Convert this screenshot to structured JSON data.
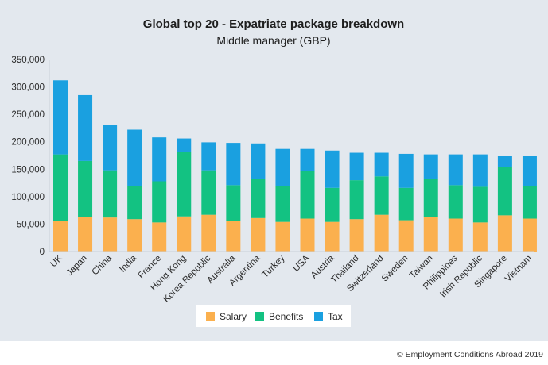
{
  "footer": {
    "credit": "© Employment Conditions Abroad 2019"
  },
  "colors": {
    "panel_background": "#e3e8ee",
    "salary": "#fbb04e",
    "benefits": "#13c282",
    "tax": "#1aa0e0",
    "axis": "#c9d0d8"
  },
  "chart_data": {
    "type": "bar",
    "stacked": true,
    "title": "Global top 20 - Expatriate package breakdown",
    "subtitle": "Middle manager (GBP)",
    "xlabel": "",
    "ylabel": "",
    "ylim": [
      0,
      350000
    ],
    "yticks": [
      0,
      50000,
      100000,
      150000,
      200000,
      250000,
      300000,
      350000
    ],
    "ytick_labels": [
      "0",
      "50,000",
      "100,000",
      "150,000",
      "200,000",
      "250,000",
      "300,000",
      "350,000"
    ],
    "grid": false,
    "legend_position": "bottom-center",
    "categories": [
      "UK",
      "Japan",
      "China",
      "India",
      "France",
      "Hong Kong",
      "Korea Republic",
      "Australia",
      "Argentina",
      "Turkey",
      "USA",
      "Austria",
      "Thailand",
      "Switzerland",
      "Sweden",
      "Taiwan",
      "Philippines",
      "Irish Republic",
      "Singapore",
      "Vietnam"
    ],
    "series": [
      {
        "name": "Salary",
        "color": "#fbb04e",
        "values": [
          56000,
          63000,
          62000,
          59000,
          53000,
          64000,
          67000,
          56000,
          61000,
          54000,
          60000,
          54000,
          59000,
          67000,
          57000,
          63000,
          60000,
          53000,
          66000,
          60000
        ]
      },
      {
        "name": "Benefits",
        "color": "#13c282",
        "values": [
          121000,
          102000,
          86000,
          60000,
          75000,
          117000,
          81000,
          65000,
          71000,
          66000,
          87000,
          62000,
          71000,
          70000,
          59000,
          69000,
          61000,
          65000,
          88000,
          60000
        ]
      },
      {
        "name": "Tax",
        "color": "#1aa0e0",
        "values": [
          135000,
          120000,
          82000,
          103000,
          80000,
          25000,
          51000,
          77000,
          65000,
          67000,
          40000,
          68000,
          50000,
          43000,
          62000,
          45000,
          56000,
          59000,
          21000,
          55000
        ]
      }
    ]
  }
}
